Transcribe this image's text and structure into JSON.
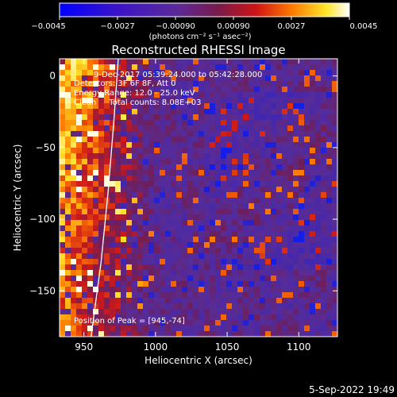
{
  "chart_data": {
    "type": "heatmap",
    "title": "Reconstructed RHESSI Image",
    "xlabel": "Heliocentric X (arcsec)",
    "ylabel": "Heliocentric Y (arcsec)",
    "xlim": [
      933,
      1127
    ],
    "ylim": [
      -182,
      12
    ],
    "x_ticks": [
      950,
      1000,
      1050,
      1100
    ],
    "y_ticks": [
      0,
      -50,
      -100,
      -150
    ],
    "y_tick_labels": [
      "0",
      "−50",
      "−100",
      "−150"
    ],
    "colorbar": {
      "min": -0.0045,
      "max": 0.0045,
      "ticks": [
        -0.0045,
        -0.0027,
        -0.0009,
        0.0009,
        0.0027,
        0.0045
      ],
      "tick_labels": [
        "−0.0045",
        "−0.0027",
        "−0.00090",
        "0.00090",
        "0.0027",
        "0.0045"
      ],
      "unit_label": "(photons cm⁻² s⁻¹ asec⁻²)",
      "colormap": "blue-purple-red-yellow-white"
    },
    "annotations": {
      "time_range": "9-Dec-2017 05:39:24.000 to 05:42:28.000",
      "detectors": "Detectors: 3F 6F 8F, Att 0",
      "energy_range": "Energy Range: 12.0 - 25.0 keV",
      "clean_counts": "Clean     Total counts: 8.08E+03",
      "peak": "Position of Peak = [945,-74]"
    },
    "peak_position": [
      945,
      -74
    ],
    "limb_curve": {
      "description": "solar limb",
      "points": [
        [
          955,
          -182
        ],
        [
          962,
          -130
        ],
        [
          967,
          -80
        ],
        [
          971,
          -30
        ],
        [
          974,
          12
        ]
      ]
    }
  },
  "footer": {
    "date": "5-Sep-2022 19:49"
  },
  "colors": {
    "background": "#000000",
    "text": "#ffffff",
    "cold": "#2233ff",
    "mid": "#5a2a9a",
    "warm": "#c81e1e",
    "hot": "#ffdc14"
  }
}
